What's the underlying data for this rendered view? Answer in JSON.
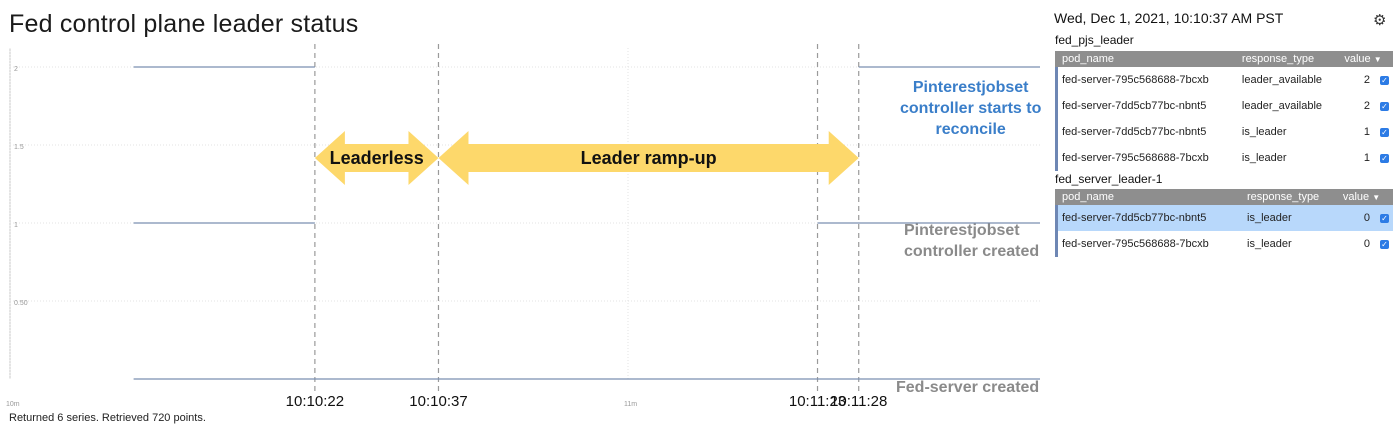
{
  "page_title": "Fed control plane leader status",
  "annotations": {
    "leaderless": "Leaderless",
    "ramp_up": "Leader ramp-up",
    "pjs_reconcile": [
      "Pinterestjobset",
      "controller starts to",
      "reconcile"
    ],
    "pjs_created": [
      "Pinterestjobset",
      "controller created"
    ],
    "fed_created": "Fed-server created"
  },
  "stats_text": "Returned 6 series. Retrieved 720 points.",
  "legend_panel": {
    "date": "Wed, Dec 1, 2021, 10:10:37 AM PST",
    "settings_icon": "gear-icon",
    "groups": [
      {
        "title": "fed_pjs_leader",
        "columns": [
          "pod_name",
          "response_type",
          "value"
        ],
        "rows": [
          {
            "pod_name": "fed-server-795c568688-7bcxb",
            "response_type": "leader_available",
            "value": "2",
            "selected": false
          },
          {
            "pod_name": "fed-server-7dd5cb77bc-nbnt5",
            "response_type": "leader_available",
            "value": "2",
            "selected": false
          },
          {
            "pod_name": "fed-server-7dd5cb77bc-nbnt5",
            "response_type": "is_leader",
            "value": "1",
            "selected": false
          },
          {
            "pod_name": "fed-server-795c568688-7bcxb",
            "response_type": "is_leader",
            "value": "1",
            "selected": false
          }
        ]
      },
      {
        "title": "fed_server_leader-1",
        "columns": [
          "pod_name",
          "response_type",
          "value"
        ],
        "rows": [
          {
            "pod_name": "fed-server-7dd5cb77bc-nbnt5",
            "response_type": "is_leader",
            "value": "0",
            "selected": true
          },
          {
            "pod_name": "fed-server-795c568688-7bcxb",
            "response_type": "is_leader",
            "value": "0",
            "selected": false
          }
        ]
      }
    ]
  },
  "chart_data": {
    "type": "line",
    "ylim": [
      0,
      2
    ],
    "y_ticks": [
      "2",
      "1.5",
      "1",
      "0.50"
    ],
    "y_tick_values": [
      2,
      1.5,
      1,
      0.5
    ],
    "x_axis_ticks": [
      "10m",
      "11m"
    ],
    "event_labels": [
      "10:10:22",
      "10:10:37",
      "10:11:23",
      "10:11:28"
    ],
    "series": [
      {
        "segments": [
          {
            "t_start": "10:10:00",
            "t_end": "10:10:22",
            "value": 2
          },
          {
            "t_start": "10:11:28",
            "t_end": "10:11:50",
            "value": 2
          }
        ]
      },
      {
        "segments": [
          {
            "t_start": "10:10:00",
            "t_end": "10:10:22",
            "value": 1
          },
          {
            "t_start": "10:11:23",
            "t_end": "10:11:50",
            "value": 1
          }
        ]
      },
      {
        "segments": [
          {
            "t_start": "10:10:00",
            "t_end": "10:11:50",
            "value": 0
          }
        ]
      }
    ],
    "colors": {
      "line": "#7a8fb0",
      "grid": "#e3e3e3",
      "arrow": "#fdd86b",
      "event_line": "#9a9a9a"
    }
  }
}
